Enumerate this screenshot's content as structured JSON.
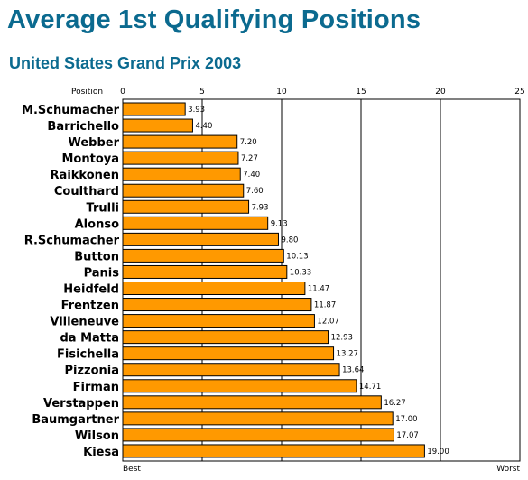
{
  "title": "Average 1st Qualifying Positions",
  "subtitle": "United States Grand Prix 2003",
  "colors": {
    "title": "#0b6a8f",
    "bar": "#ff9900",
    "bar_stroke": "#000000"
  },
  "chart_data": {
    "type": "bar",
    "orientation": "horizontal",
    "axis_label": "Position",
    "xlim": [
      0,
      25
    ],
    "ticks": [
      0,
      5,
      10,
      15,
      20,
      25
    ],
    "tick_labels": [
      "0",
      "5",
      "10",
      "15",
      "20",
      "25"
    ],
    "x_end_labels": {
      "left": "Best",
      "right": "Worst"
    },
    "grid": true,
    "categories": [
      "M.Schumacher",
      "Barrichello",
      "Webber",
      "Montoya",
      "Raikkonen",
      "Coulthard",
      "Trulli",
      "Alonso",
      "R.Schumacher",
      "Button",
      "Panis",
      "Heidfeld",
      "Frentzen",
      "Villeneuve",
      "da Matta",
      "Fisichella",
      "Pizzonia",
      "Firman",
      "Verstappen",
      "Baumgartner",
      "Wilson",
      "Kiesa"
    ],
    "values": [
      3.93,
      4.4,
      7.2,
      7.27,
      7.4,
      7.6,
      7.93,
      9.13,
      9.8,
      10.13,
      10.33,
      11.47,
      11.87,
      12.07,
      12.93,
      13.27,
      13.64,
      14.71,
      16.27,
      17.0,
      17.07,
      19.0
    ],
    "value_labels": [
      "3.93",
      "4.40",
      "7.20",
      "7.27",
      "7.40",
      "7.60",
      "7.93",
      "9.13",
      "9.80",
      "10.13",
      "10.33",
      "11.47",
      "11.87",
      "12.07",
      "12.93",
      "13.27",
      "13.64",
      "14.71",
      "16.27",
      "17.00",
      "17.07",
      "19.00"
    ]
  }
}
